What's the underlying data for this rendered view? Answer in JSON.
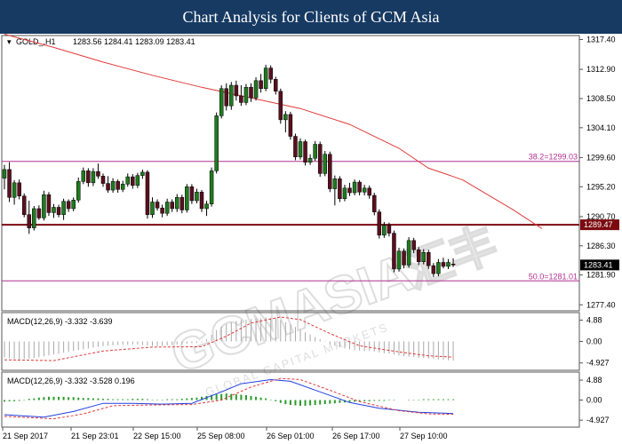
{
  "banner": {
    "title": "Chart Analysis for Clients of GCM Asia"
  },
  "watermark": {
    "brand": "GCMASIA",
    "brand_cn": "汇丰",
    "tagline": "GLOBAL CAPITAL MARKETS"
  },
  "colors": {
    "banner_bg": "#173a63",
    "bull_candle": "#1f7a1f",
    "bear_candle": "#5a0f1f",
    "ma_line": "#e03a3a",
    "fib_line": "#b0308f",
    "support_line": "#7a0a10",
    "macd_hist": "#a9a9a9",
    "macd_signal": "#e03a3a",
    "macd2_main": "#2040e0",
    "macd2_hist": "#2a9a2a"
  },
  "chart_data": [
    {
      "type": "candlestick",
      "symbol_label": "GOLD_,H1",
      "ohlc_label": "1283.56 1284.41 1283.09 1283.41",
      "ylim": [
        1276.5,
        1318.0
      ],
      "price_ticks": [
        "1317.40",
        "1312.90",
        "1308.50",
        "1304.10",
        "1299.60",
        "1295.20",
        "1290.70",
        "1286.30",
        "1281.90",
        "1277.40"
      ],
      "x_ticks": [
        "21 Sep 2017",
        "21 Sep 23:01",
        "22 Sep 15:00",
        "25 Sep 08:00",
        "26 Sep 01:00",
        "26 Sep 17:00",
        "27 Sep 10:00"
      ],
      "current_price": 1283.41,
      "current_price_label": "1283.41",
      "horizontal_lines": [
        {
          "value": 1299.03,
          "label": "38.2=1299.03",
          "style": "fib"
        },
        {
          "value": 1289.47,
          "label": "1289.47",
          "style": "support"
        },
        {
          "value": 1281.01,
          "label": "50.0=1281.01",
          "style": "fib"
        }
      ],
      "moving_average": [
        [
          0,
          1318.2
        ],
        [
          10,
          1316.2
        ],
        [
          20,
          1314.0
        ],
        [
          30,
          1312.0
        ],
        [
          40,
          1310.2
        ],
        [
          50,
          1308.6
        ],
        [
          60,
          1307.0
        ],
        [
          70,
          1304.6
        ],
        [
          80,
          1301.0
        ],
        [
          86,
          1298.0
        ],
        [
          90,
          1297.0
        ],
        [
          93,
          1296.2
        ],
        [
          98,
          1294.0
        ],
        [
          103,
          1291.8
        ],
        [
          109,
          1288.9
        ]
      ],
      "candles": [
        [
          1296.5,
          1298.5,
          1294.8,
          1297.8
        ],
        [
          1297.8,
          1298.9,
          1292.9,
          1293.6
        ],
        [
          1293.6,
          1296.2,
          1292.5,
          1295.8
        ],
        [
          1295.8,
          1296.3,
          1293.3,
          1293.8
        ],
        [
          1293.8,
          1294.2,
          1290.6,
          1291.0
        ],
        [
          1291.0,
          1293.1,
          1288.1,
          1289.0
        ],
        [
          1289.0,
          1292.3,
          1288.6,
          1291.9
        ],
        [
          1291.9,
          1292.4,
          1290.2,
          1290.5
        ],
        [
          1290.5,
          1294.6,
          1290.1,
          1294.0
        ],
        [
          1294.0,
          1294.4,
          1290.8,
          1291.3
        ],
        [
          1291.3,
          1292.6,
          1290.5,
          1292.1
        ],
        [
          1292.1,
          1292.5,
          1290.6,
          1291.0
        ],
        [
          1291.0,
          1293.4,
          1290.2,
          1293.0
        ],
        [
          1293.0,
          1293.3,
          1291.4,
          1291.9
        ],
        [
          1291.9,
          1293.6,
          1291.5,
          1293.2
        ],
        [
          1293.2,
          1296.6,
          1292.8,
          1296.0
        ],
        [
          1296.0,
          1298.1,
          1295.6,
          1297.6
        ],
        [
          1297.6,
          1298.0,
          1295.2,
          1295.8
        ],
        [
          1295.8,
          1298.0,
          1295.3,
          1297.5
        ],
        [
          1297.5,
          1298.7,
          1296.4,
          1296.8
        ],
        [
          1296.8,
          1297.2,
          1295.2,
          1295.7
        ],
        [
          1295.7,
          1296.8,
          1294.3,
          1294.7
        ],
        [
          1294.7,
          1296.5,
          1294.3,
          1296.0
        ],
        [
          1296.0,
          1296.3,
          1294.3,
          1294.8
        ],
        [
          1294.8,
          1296.1,
          1294.4,
          1295.6
        ],
        [
          1295.6,
          1297.2,
          1295.2,
          1296.7
        ],
        [
          1296.7,
          1297.1,
          1294.9,
          1295.4
        ],
        [
          1295.4,
          1297.3,
          1295.0,
          1296.9
        ],
        [
          1296.9,
          1297.8,
          1296.4,
          1297.4
        ],
        [
          1297.4,
          1297.7,
          1290.4,
          1291.0
        ],
        [
          1291.0,
          1293.6,
          1290.5,
          1292.9
        ],
        [
          1292.9,
          1293.3,
          1291.6,
          1292.0
        ],
        [
          1292.0,
          1292.5,
          1290.6,
          1291.2
        ],
        [
          1291.2,
          1293.4,
          1290.8,
          1292.9
        ],
        [
          1292.9,
          1293.3,
          1291.4,
          1291.9
        ],
        [
          1291.9,
          1294.1,
          1291.4,
          1293.6
        ],
        [
          1293.6,
          1294.0,
          1291.2,
          1291.7
        ],
        [
          1291.7,
          1295.6,
          1291.3,
          1295.2
        ],
        [
          1295.2,
          1295.6,
          1292.6,
          1293.1
        ],
        [
          1293.1,
          1294.9,
          1292.7,
          1294.4
        ],
        [
          1294.4,
          1294.7,
          1291.4,
          1291.9
        ],
        [
          1291.9,
          1293.1,
          1290.8,
          1292.6
        ],
        [
          1292.6,
          1298.1,
          1292.2,
          1297.6
        ],
        [
          1297.6,
          1306.4,
          1297.2,
          1305.9
        ],
        [
          1305.9,
          1310.5,
          1305.5,
          1310.0
        ],
        [
          1310.0,
          1310.8,
          1306.7,
          1307.4
        ],
        [
          1307.4,
          1311.0,
          1306.8,
          1310.5
        ],
        [
          1310.5,
          1311.2,
          1308.2,
          1308.9
        ],
        [
          1308.9,
          1310.5,
          1307.4,
          1307.9
        ],
        [
          1307.9,
          1310.7,
          1307.5,
          1310.2
        ],
        [
          1310.2,
          1310.8,
          1308.0,
          1308.6
        ],
        [
          1308.6,
          1311.7,
          1308.2,
          1311.2
        ],
        [
          1311.2,
          1312.2,
          1309.4,
          1310.0
        ],
        [
          1310.0,
          1313.6,
          1309.6,
          1313.1
        ],
        [
          1313.1,
          1313.5,
          1310.8,
          1311.4
        ],
        [
          1311.4,
          1311.8,
          1309.1,
          1309.6
        ],
        [
          1309.6,
          1310.0,
          1304.7,
          1305.3
        ],
        [
          1305.3,
          1306.6,
          1303.4,
          1306.1
        ],
        [
          1306.1,
          1306.5,
          1302.3,
          1302.8
        ],
        [
          1302.8,
          1303.2,
          1299.2,
          1299.7
        ],
        [
          1299.7,
          1302.5,
          1299.3,
          1302.0
        ],
        [
          1302.0,
          1302.3,
          1298.4,
          1298.9
        ],
        [
          1298.9,
          1300.1,
          1298.5,
          1299.5
        ],
        [
          1299.5,
          1302.1,
          1299.1,
          1301.6
        ],
        [
          1301.6,
          1302.0,
          1296.7,
          1297.2
        ],
        [
          1297.2,
          1300.6,
          1296.8,
          1300.1
        ],
        [
          1300.1,
          1300.5,
          1294.4,
          1294.9
        ],
        [
          1294.9,
          1296.9,
          1292.4,
          1296.4
        ],
        [
          1296.4,
          1296.8,
          1292.9,
          1293.4
        ],
        [
          1293.4,
          1295.5,
          1293.0,
          1295.0
        ],
        [
          1295.0,
          1295.8,
          1293.8,
          1294.3
        ],
        [
          1294.3,
          1296.3,
          1293.9,
          1295.9
        ],
        [
          1295.9,
          1296.2,
          1293.9,
          1294.4
        ],
        [
          1294.4,
          1295.5,
          1293.9,
          1295.0
        ],
        [
          1295.0,
          1295.4,
          1293.4,
          1293.9
        ],
        [
          1293.9,
          1294.3,
          1290.9,
          1291.4
        ],
        [
          1291.4,
          1291.8,
          1287.4,
          1287.9
        ],
        [
          1287.9,
          1289.9,
          1287.5,
          1289.4
        ],
        [
          1289.4,
          1289.8,
          1287.7,
          1288.2
        ],
        [
          1288.2,
          1288.6,
          1282.3,
          1282.8
        ],
        [
          1282.8,
          1286.0,
          1282.4,
          1285.5
        ],
        [
          1285.5,
          1285.9,
          1282.9,
          1283.4
        ],
        [
          1283.4,
          1287.6,
          1283.0,
          1287.1
        ],
        [
          1287.1,
          1287.5,
          1285.2,
          1285.7
        ],
        [
          1285.7,
          1286.1,
          1283.4,
          1283.9
        ],
        [
          1283.9,
          1285.8,
          1283.5,
          1285.3
        ],
        [
          1285.3,
          1285.7,
          1282.8,
          1283.3
        ],
        [
          1283.3,
          1283.7,
          1281.6,
          1282.1
        ],
        [
          1282.1,
          1284.3,
          1281.7,
          1283.8
        ],
        [
          1283.8,
          1284.5,
          1282.9,
          1283.2
        ],
        [
          1283.2,
          1284.3,
          1282.8,
          1283.8
        ],
        [
          1283.56,
          1284.41,
          1283.09,
          1283.41
        ]
      ]
    },
    {
      "type": "bar",
      "title": "MACD(12,26,9) -3.332 -3.639",
      "ylim": [
        -6.2,
        6.2
      ],
      "y_ticks": [
        "4.88",
        "0.00",
        "-4.927"
      ],
      "y_tick_values": [
        4.88,
        0.0,
        -4.927
      ],
      "series": [
        {
          "kind": "histogram",
          "values": [
            -3.6,
            -3.8,
            -4.0,
            -4.1,
            -4.0,
            -3.9,
            -3.8,
            -3.6,
            -3.4,
            -3.2,
            -3.0,
            -2.8,
            -2.6,
            -2.4,
            -2.2,
            -2.0,
            -1.8,
            -1.6,
            -1.4,
            -1.2,
            -1.1,
            -1.0,
            -0.9,
            -0.8,
            -0.8,
            -0.8,
            -0.7,
            -0.7,
            -0.8,
            -0.9,
            -1.0,
            -1.1,
            -1.0,
            -0.9,
            -0.8,
            -0.7,
            -0.6,
            -0.5,
            -0.4,
            -0.3,
            -0.2,
            0.5,
            1.5,
            2.6,
            3.4,
            4.0,
            4.4,
            4.7,
            4.9,
            5.0,
            5.1,
            5.2,
            5.3,
            5.5,
            5.4,
            5.3,
            4.9,
            4.4,
            3.9,
            3.3,
            2.7,
            2.1,
            1.6,
            1.0,
            0.5,
            -0.1,
            -0.6,
            -1.0,
            -1.3,
            -1.6,
            -1.8,
            -2.0,
            -2.1,
            -2.2,
            -2.2,
            -2.3,
            -2.5,
            -2.7,
            -2.8,
            -3.0,
            -3.2,
            -3.4,
            -3.5,
            -3.6,
            -3.7,
            -3.8,
            -3.9,
            -4.0,
            -4.1,
            -4.2,
            -4.3,
            -4.4
          ]
        },
        {
          "kind": "signal",
          "values": [
            [
              0,
              -4.2
            ],
            [
              10,
              -4.4
            ],
            [
              20,
              -2.2
            ],
            [
              30,
              -1.3
            ],
            [
              40,
              -1.2
            ],
            [
              45,
              1.2
            ],
            [
              50,
              4.2
            ],
            [
              56,
              5.6
            ],
            [
              60,
              5.0
            ],
            [
              66,
              1.8
            ],
            [
              72,
              -1.0
            ],
            [
              80,
              -2.4
            ],
            [
              86,
              -3.3
            ],
            [
              91,
              -3.6
            ]
          ]
        }
      ]
    },
    {
      "type": "bar",
      "title": "MACD(12,26,9) -3.332 -3.528 0.196",
      "ylim": [
        -6.2,
        6.2
      ],
      "y_ticks": [
        "4.88",
        "0.00",
        "-4.927"
      ],
      "y_tick_values": [
        4.88,
        0.0,
        -4.927
      ],
      "series": [
        {
          "kind": "histogram",
          "values": [
            -0.4,
            -0.3,
            -0.3,
            -0.2,
            0.1,
            0.3,
            0.4,
            0.6,
            0.7,
            0.8,
            0.8,
            0.8,
            0.8,
            0.7,
            0.7,
            0.6,
            0.5,
            0.5,
            0.4,
            0.4,
            0.3,
            0.3,
            0.2,
            0.2,
            0.2,
            0.2,
            0.3,
            0.3,
            0.3,
            0.2,
            0.1,
            0.1,
            0.1,
            0.2,
            0.2,
            0.2,
            0.3,
            0.4,
            0.5,
            0.6,
            0.8,
            1.0,
            1.2,
            1.4,
            1.5,
            1.6,
            1.5,
            1.4,
            1.3,
            1.2,
            1.0,
            0.8,
            0.6,
            0.4,
            0.1,
            -0.3,
            -0.7,
            -1.0,
            -1.2,
            -1.3,
            -1.4,
            -1.4,
            -1.3,
            -1.2,
            -1.1,
            -1.0,
            -0.9,
            -0.8,
            -0.7,
            -0.6,
            -0.5,
            -0.4,
            -0.4,
            -0.3,
            -0.3,
            -0.2,
            -0.2,
            -0.2,
            -0.1,
            -0.1,
            0.0,
            0.0,
            0.1,
            0.1,
            0.1,
            0.2,
            0.2,
            0.2,
            0.2,
            0.2,
            0.2,
            0.196
          ]
        },
        {
          "kind": "main",
          "values": [
            [
              0,
              -3.6
            ],
            [
              8,
              -4.2
            ],
            [
              14,
              -2.8
            ],
            [
              20,
              -0.8
            ],
            [
              26,
              -0.8
            ],
            [
              32,
              -1.0
            ],
            [
              38,
              -0.8
            ],
            [
              44,
              2.0
            ],
            [
              48,
              4.0
            ],
            [
              54,
              5.0
            ],
            [
              58,
              4.6
            ],
            [
              64,
              2.0
            ],
            [
              70,
              -0.6
            ],
            [
              76,
              -2.0
            ],
            [
              84,
              -3.0
            ],
            [
              91,
              -3.3
            ]
          ]
        },
        {
          "kind": "signal",
          "values": [
            [
              0,
              -4.0
            ],
            [
              10,
              -4.6
            ],
            [
              16,
              -3.4
            ],
            [
              22,
              -1.4
            ],
            [
              30,
              -1.2
            ],
            [
              38,
              -1.1
            ],
            [
              44,
              0.0
            ],
            [
              50,
              3.2
            ],
            [
              56,
              5.3
            ],
            [
              60,
              5.0
            ],
            [
              66,
              2.4
            ],
            [
              72,
              -0.4
            ],
            [
              80,
              -2.6
            ],
            [
              86,
              -3.4
            ],
            [
              91,
              -3.5
            ]
          ]
        }
      ]
    }
  ]
}
